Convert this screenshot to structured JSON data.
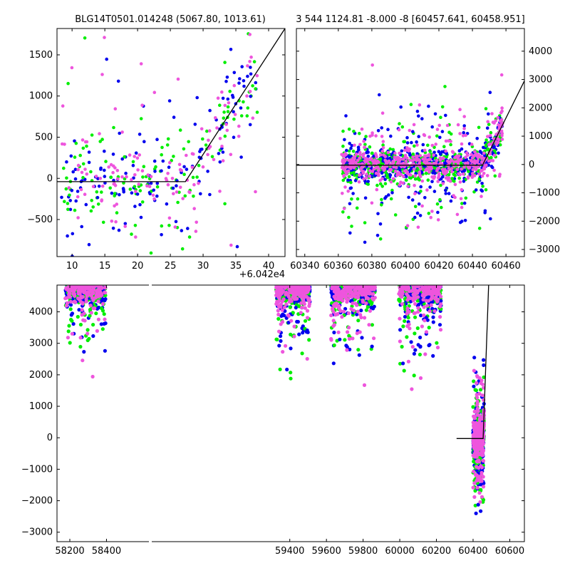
{
  "colors": {
    "green": "#00ee00",
    "blue": "#0000ee",
    "pink": "#ee55dd",
    "model_line": "#000000",
    "axes": "#000000"
  },
  "chart_data": [
    {
      "id": "top-left",
      "type": "scatter",
      "title": "BLG14T0501.014248 (5067.80, 1013.61)",
      "xlim": [
        7.7,
        42.5
      ],
      "ylim": [
        -950,
        1820
      ],
      "xticks": [
        10,
        15,
        20,
        25,
        30,
        35,
        40
      ],
      "yticks": [
        -500,
        0,
        500,
        1000,
        1500
      ],
      "x_offset_label": "+6.042e4",
      "ytick_side": "left",
      "model_line": [
        [
          7.7,
          -40
        ],
        [
          27.3,
          -40
        ],
        [
          42.5,
          1820
        ]
      ],
      "point_seed": 101,
      "point_count": 420
    },
    {
      "id": "top-right",
      "type": "scatter",
      "title": "3 544 1124.81 -8.000 -8 [60457.641, 60458.951]",
      "xlim": [
        60335,
        60471
      ],
      "ylim": [
        -3250,
        4800
      ],
      "xticks": [
        60340,
        60360,
        60380,
        60400,
        60420,
        60440,
        60460
      ],
      "yticks": [
        -3000,
        -2000,
        -1000,
        0,
        1000,
        2000,
        3000,
        4000
      ],
      "ytick_side": "right",
      "model_line": [
        [
          60335,
          -25
        ],
        [
          60446,
          -25
        ],
        [
          60471,
          2950
        ]
      ],
      "point_seed": 202,
      "point_count": 1500
    },
    {
      "id": "bottom",
      "type": "scatter",
      "title": "",
      "xlim": [
        58130,
        60680
      ],
      "ylim": [
        -3300,
        4850
      ],
      "xticks": [
        58200,
        58400,
        59400,
        59600,
        59800,
        60000,
        60200,
        60400,
        60600
      ],
      "yticks": [
        -3000,
        -2000,
        -1000,
        0,
        1000,
        2000,
        3000,
        4000
      ],
      "ytick_side": "left",
      "model_line": [
        [
          60310,
          -25
        ],
        [
          60455,
          -25
        ],
        [
          60485,
          4850
        ]
      ],
      "season_ranges": [
        [
          58175,
          58395
        ],
        [
          59325,
          59510
        ],
        [
          59625,
          59865
        ],
        [
          59995,
          60225
        ],
        [
          60400,
          60460
        ]
      ],
      "point_seed": 303,
      "point_count": 5200
    }
  ]
}
